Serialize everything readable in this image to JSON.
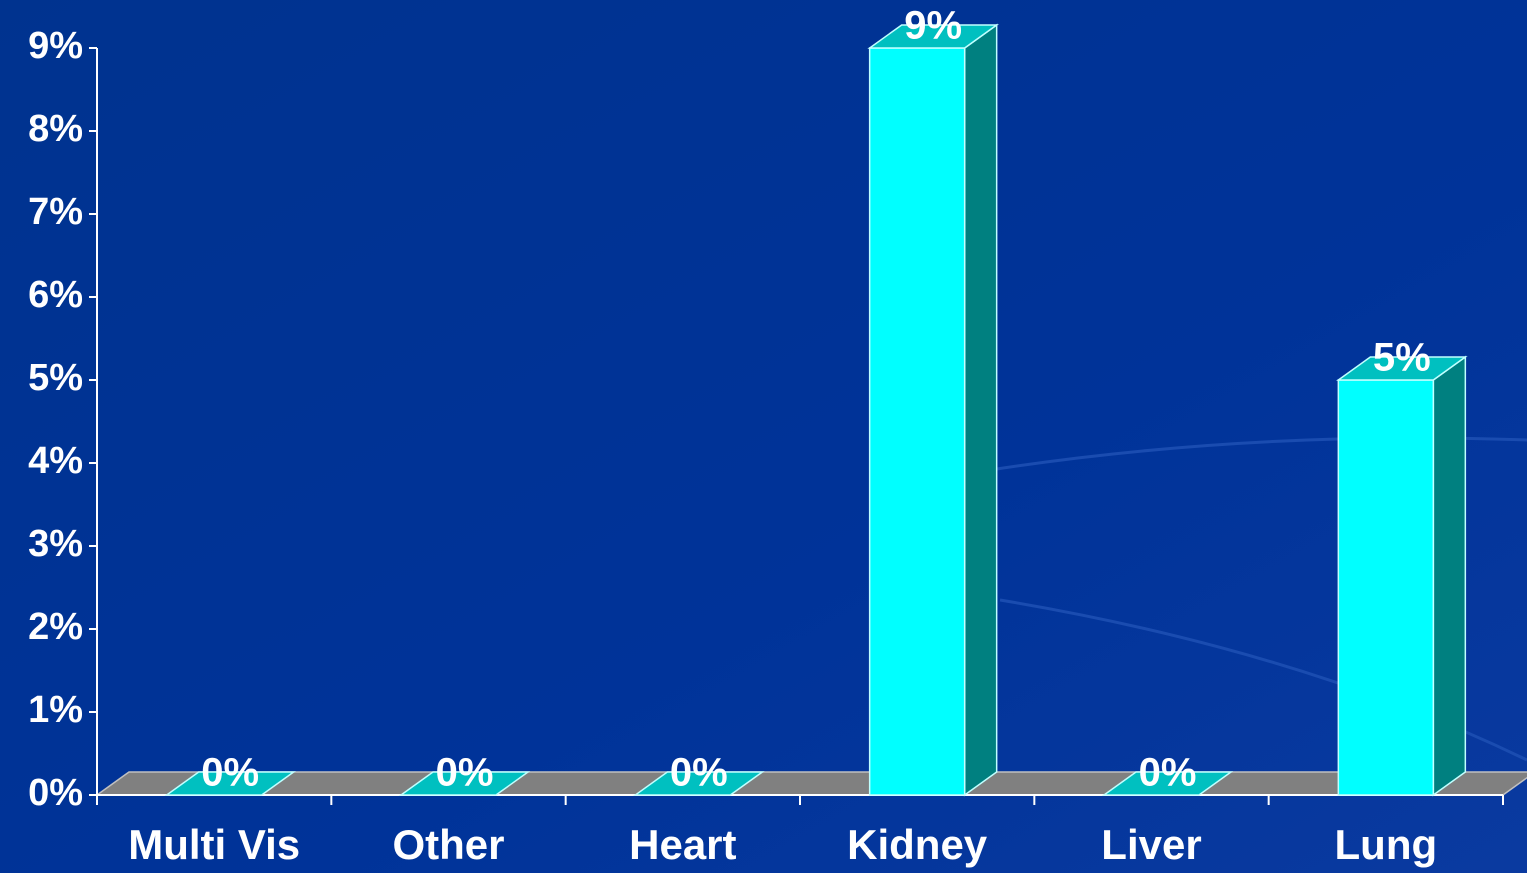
{
  "chart_data": {
    "type": "bar",
    "categories": [
      "Multi Vis",
      "Other",
      "Heart",
      "Kidney",
      "Liver",
      "Lung"
    ],
    "values": [
      0,
      0,
      0,
      9,
      0,
      5
    ],
    "value_labels": [
      "0%",
      "0%",
      "0%",
      "9%",
      "0%",
      "5%"
    ],
    "color": "#00ffff",
    "ylim": [
      0,
      9
    ],
    "yticks": [
      {
        "value": 0,
        "label": "0%"
      },
      {
        "value": 1,
        "label": "1%"
      },
      {
        "value": 2,
        "label": "2%"
      },
      {
        "value": 3,
        "label": "3%"
      },
      {
        "value": 4,
        "label": "4%"
      },
      {
        "value": 5,
        "label": "5%"
      },
      {
        "value": 6,
        "label": "6%"
      },
      {
        "value": 7,
        "label": "7%"
      },
      {
        "value": 8,
        "label": "8%"
      },
      {
        "value": 9,
        "label": "9%"
      }
    ]
  }
}
